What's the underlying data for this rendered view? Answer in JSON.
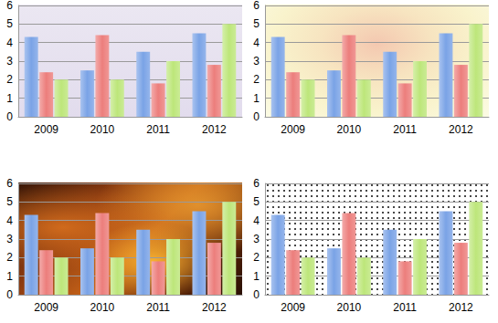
{
  "chart_data": [
    {
      "type": "bar",
      "categories": [
        "2009",
        "2010",
        "2011",
        "2012"
      ],
      "series": [
        {
          "color": "#7aa3e6",
          "values": [
            4.3,
            2.5,
            3.5,
            4.5
          ]
        },
        {
          "color": "#ec7e7c",
          "values": [
            2.4,
            4.4,
            1.8,
            2.8
          ]
        },
        {
          "color": "#bde67a",
          "values": [
            2,
            2,
            3,
            5
          ]
        }
      ],
      "ylim": [
        0,
        6
      ],
      "yticks": [
        0,
        1,
        2,
        3,
        4,
        5,
        6
      ],
      "grid": true
    },
    {
      "type": "bar",
      "categories": [
        "2009",
        "2010",
        "2011",
        "2012"
      ],
      "series": [
        {
          "color": "#7aa3e6",
          "values": [
            4.3,
            2.5,
            3.5,
            4.5
          ]
        },
        {
          "color": "#ec7e7c",
          "values": [
            2.4,
            4.4,
            1.8,
            2.8
          ]
        },
        {
          "color": "#bde67a",
          "values": [
            2,
            2,
            3,
            5
          ]
        }
      ],
      "ylim": [
        0,
        6
      ],
      "yticks": [
        0,
        1,
        2,
        3,
        4,
        5,
        6
      ],
      "grid": true
    },
    {
      "type": "bar",
      "categories": [
        "2009",
        "2010",
        "2011",
        "2012"
      ],
      "series": [
        {
          "color": "#7aa3e6",
          "values": [
            4.3,
            2.5,
            3.5,
            4.5
          ]
        },
        {
          "color": "#ec7e7c",
          "values": [
            2.4,
            4.4,
            1.8,
            2.8
          ]
        },
        {
          "color": "#bde67a",
          "values": [
            2,
            2,
            3,
            5
          ]
        }
      ],
      "ylim": [
        0,
        6
      ],
      "yticks": [
        0,
        1,
        2,
        3,
        4,
        5,
        6
      ],
      "grid": true
    },
    {
      "type": "bar",
      "categories": [
        "2009",
        "2010",
        "2011",
        "2012"
      ],
      "series": [
        {
          "color": "#7aa3e6",
          "values": [
            4.3,
            2.5,
            3.5,
            4.5
          ]
        },
        {
          "color": "#ec7e7c",
          "values": [
            2.4,
            4.4,
            1.8,
            2.8
          ]
        },
        {
          "color": "#bde67a",
          "values": [
            2,
            2,
            3,
            5
          ]
        }
      ],
      "ylim": [
        0,
        6
      ],
      "yticks": [
        0,
        1,
        2,
        3,
        4,
        5,
        6
      ],
      "grid": true
    }
  ]
}
